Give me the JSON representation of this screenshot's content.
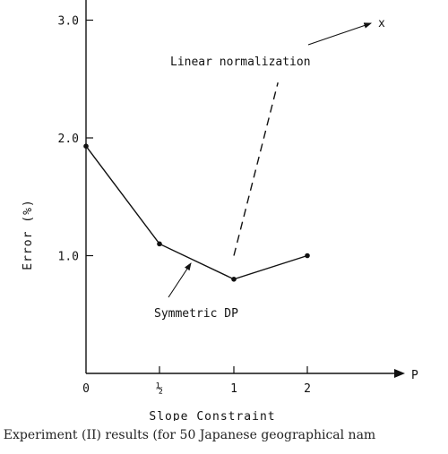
{
  "chart_data": {
    "type": "line",
    "categories": [
      "0",
      "½",
      "1",
      "2"
    ],
    "y_ticks": [
      "1.0",
      "2.0",
      "3.0"
    ],
    "ylim": [
      0,
      3.2
    ],
    "xlabel": "Slope   Constraint",
    "ylabel": "Error  (%)",
    "x_axis_end_label": "P",
    "series": [
      {
        "name": "Symmetric DP",
        "style": "solid",
        "values": [
          1.93,
          1.1,
          0.8,
          1.0
        ]
      },
      {
        "name": "Linear normalization",
        "style": "dashed",
        "values_from": [
          2,
          1.0
        ],
        "values_to": [
          2.6,
          2.47
        ]
      }
    ],
    "annotations": {
      "linear_label": "Linear  normalization",
      "linear_marker": "x",
      "symmetric_label": "Symmetric  DP"
    }
  },
  "caption": "6.  Experiment (II) results (for 50 Japanese geographical nam"
}
